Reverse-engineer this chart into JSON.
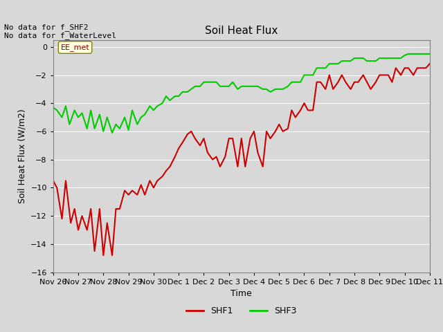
{
  "title": "Soil Heat Flux",
  "ylabel": "Soil Heat Flux (W/m2)",
  "xlabel": "Time",
  "ylim": [
    -16,
    0.5
  ],
  "bg_color": "#e8e8e8",
  "plot_bg_color": "#d8d8d8",
  "grid_color": "#ffffff",
  "annotation_text": "No data for f_SHF2\nNo data for f_WaterLevel",
  "legend_box_label": "EE_met",
  "xtick_labels": [
    "Nov 26",
    "Nov 27",
    "Nov 28",
    "Nov 29",
    "Nov 30",
    "Dec 1",
    "Dec 2",
    "Dec 3",
    "Dec 4",
    "Dec 5",
    "Dec 6",
    "Dec 7",
    "Dec 8",
    "Dec 9",
    "Dec 10",
    "Dec 11"
  ],
  "shf1_color": "#cc0000",
  "shf3_color": "#00cc00",
  "shf1_x": [
    0,
    0.15,
    0.35,
    0.5,
    0.7,
    0.85,
    1.0,
    1.15,
    1.35,
    1.5,
    1.65,
    1.85,
    2.0,
    2.15,
    2.35,
    2.5,
    2.65,
    2.85,
    3.0,
    3.15,
    3.35,
    3.5,
    3.65,
    3.85,
    4.0,
    4.15,
    4.35,
    4.5,
    4.65,
    4.85,
    5.0,
    5.15,
    5.35,
    5.5,
    5.65,
    5.85,
    6.0,
    6.15,
    6.35,
    6.5,
    6.65,
    6.85,
    7.0,
    7.15,
    7.35,
    7.5,
    7.65,
    7.85,
    8.0,
    8.15,
    8.35,
    8.5,
    8.65,
    8.85,
    9.0,
    9.15,
    9.35,
    9.5,
    9.65,
    9.85,
    10.0,
    10.15,
    10.35,
    10.5,
    10.65,
    10.85,
    11.0,
    11.15,
    11.35,
    11.5,
    11.65,
    11.85,
    12.0,
    12.15,
    12.35,
    12.5,
    12.65,
    12.85,
    13.0,
    13.15,
    13.35,
    13.5,
    13.65,
    13.85,
    14.0,
    14.15,
    14.35,
    14.5,
    14.65,
    14.85,
    15.0
  ],
  "shf1_y": [
    -9.5,
    -10.0,
    -12.2,
    -9.5,
    -12.5,
    -11.5,
    -13.0,
    -12.0,
    -13.0,
    -11.5,
    -14.5,
    -11.5,
    -14.8,
    -12.5,
    -14.8,
    -11.5,
    -11.5,
    -10.2,
    -10.5,
    -10.2,
    -10.5,
    -9.8,
    -10.5,
    -9.5,
    -10.0,
    -9.5,
    -9.2,
    -8.8,
    -8.5,
    -7.8,
    -7.2,
    -6.8,
    -6.2,
    -6.0,
    -6.5,
    -7.0,
    -6.5,
    -7.5,
    -8.0,
    -7.8,
    -8.5,
    -7.8,
    -6.5,
    -6.5,
    -8.5,
    -6.5,
    -8.5,
    -6.5,
    -6.0,
    -7.5,
    -8.5,
    -6.0,
    -6.5,
    -6.0,
    -5.5,
    -6.0,
    -5.8,
    -4.5,
    -5.0,
    -4.5,
    -4.0,
    -4.5,
    -4.5,
    -2.5,
    -2.5,
    -3.0,
    -2.0,
    -3.0,
    -2.5,
    -2.0,
    -2.5,
    -3.0,
    -2.5,
    -2.5,
    -2.0,
    -2.5,
    -3.0,
    -2.5,
    -2.0,
    -2.0,
    -2.0,
    -2.5,
    -1.5,
    -2.0,
    -1.5,
    -1.5,
    -2.0,
    -1.5,
    -1.5,
    -1.5,
    -1.2
  ],
  "shf3_x": [
    0,
    0.15,
    0.35,
    0.5,
    0.65,
    0.85,
    1.0,
    1.15,
    1.35,
    1.5,
    1.65,
    1.85,
    2.0,
    2.15,
    2.35,
    2.5,
    2.65,
    2.85,
    3.0,
    3.15,
    3.35,
    3.5,
    3.65,
    3.85,
    4.0,
    4.15,
    4.35,
    4.5,
    4.65,
    4.85,
    5.0,
    5.15,
    5.35,
    5.5,
    5.65,
    5.85,
    6.0,
    6.15,
    6.35,
    6.5,
    6.65,
    6.85,
    7.0,
    7.15,
    7.35,
    7.5,
    7.65,
    7.85,
    8.0,
    8.15,
    8.35,
    8.5,
    8.65,
    8.85,
    9.0,
    9.15,
    9.35,
    9.5,
    9.65,
    9.85,
    10.0,
    10.15,
    10.35,
    10.5,
    10.65,
    10.85,
    11.0,
    11.15,
    11.35,
    11.5,
    11.65,
    11.85,
    12.0,
    12.15,
    12.35,
    12.5,
    12.65,
    12.85,
    13.0,
    13.15,
    13.35,
    13.5,
    13.65,
    13.85,
    14.0,
    14.15,
    14.35,
    14.5,
    14.65,
    14.85,
    15.0
  ],
  "shf3_y": [
    -4.3,
    -4.5,
    -5.0,
    -4.2,
    -5.5,
    -4.5,
    -5.0,
    -4.7,
    -5.8,
    -4.5,
    -5.8,
    -4.8,
    -6.0,
    -5.0,
    -6.1,
    -5.5,
    -5.8,
    -5.0,
    -5.9,
    -4.5,
    -5.5,
    -5.0,
    -4.8,
    -4.2,
    -4.5,
    -4.2,
    -4.0,
    -3.5,
    -3.8,
    -3.5,
    -3.5,
    -3.2,
    -3.2,
    -3.0,
    -2.8,
    -2.8,
    -2.5,
    -2.5,
    -2.5,
    -2.5,
    -2.8,
    -2.8,
    -2.8,
    -2.5,
    -3.0,
    -2.8,
    -2.8,
    -2.8,
    -2.8,
    -2.8,
    -3.0,
    -3.0,
    -3.2,
    -3.0,
    -3.0,
    -3.0,
    -2.8,
    -2.5,
    -2.5,
    -2.5,
    -2.0,
    -2.0,
    -2.0,
    -1.5,
    -1.5,
    -1.5,
    -1.2,
    -1.2,
    -1.2,
    -1.0,
    -1.0,
    -1.0,
    -0.8,
    -0.8,
    -0.8,
    -1.0,
    -1.0,
    -1.0,
    -0.8,
    -0.8,
    -0.8,
    -0.8,
    -0.8,
    -0.8,
    -0.6,
    -0.5,
    -0.5,
    -0.5,
    -0.5,
    -0.5,
    -0.5
  ]
}
